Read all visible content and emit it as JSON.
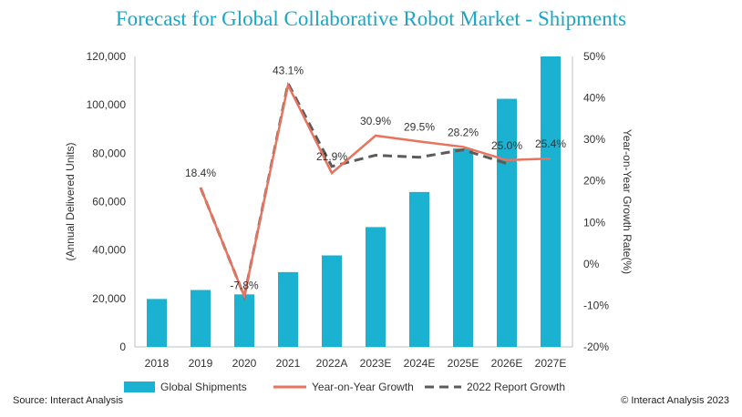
{
  "chart_data": {
    "type": "bar+line",
    "title": "Forecast for Global Collaborative Robot Market - Shipments",
    "categories": [
      "2018",
      "2019",
      "2020",
      "2021",
      "2022A",
      "2023E",
      "2024E",
      "2025E",
      "2026E",
      "2027E"
    ],
    "y_left": {
      "label": "(Annual Delivered Units)",
      "lim": [
        0,
        120000
      ],
      "ticks": [
        0,
        20000,
        40000,
        60000,
        80000,
        100000,
        120000
      ],
      "tick_labels": [
        "0",
        "20,000",
        "40,000",
        "60,000",
        "80,000",
        "100,000",
        "120,000"
      ]
    },
    "y_right": {
      "label": "Year-on-Year Growth Rate(%)",
      "lim": [
        -20,
        50
      ],
      "ticks": [
        -20,
        -10,
        0,
        10,
        20,
        30,
        40,
        50
      ],
      "tick_labels": [
        "-20%",
        "-10%",
        "0%",
        "10%",
        "20%",
        "30%",
        "40%",
        "50%"
      ]
    },
    "series": [
      {
        "name": "Global Shipments",
        "type": "bar",
        "axis": "left",
        "color": "#1ab2d0",
        "values": [
          19800,
          23500,
          21700,
          30900,
          37800,
          49500,
          64000,
          82000,
          102500,
          120000
        ]
      },
      {
        "name": "Year-on-Year Growth",
        "type": "line",
        "axis": "right",
        "color": "#e8735e",
        "values": [
          null,
          18.4,
          -7.8,
          43.1,
          21.9,
          30.9,
          29.5,
          28.2,
          25.0,
          25.4
        ],
        "labels": [
          "",
          "18.4%",
          "-7.8%",
          "43.1%",
          "21.9%",
          "30.9%",
          "29.5%",
          "28.2%",
          "25.0%",
          "25.4%"
        ]
      },
      {
        "name": "2022 Report Growth",
        "type": "line-dashed",
        "axis": "right",
        "color": "#5b5b5b",
        "values": [
          null,
          18.4,
          -7.8,
          43.5,
          23.5,
          26.2,
          25.7,
          27.5,
          24.2,
          null
        ]
      }
    ],
    "legend": "bottom"
  },
  "source": "Source: Interact Analysis",
  "copyright": "© Interact Analysis 2023"
}
